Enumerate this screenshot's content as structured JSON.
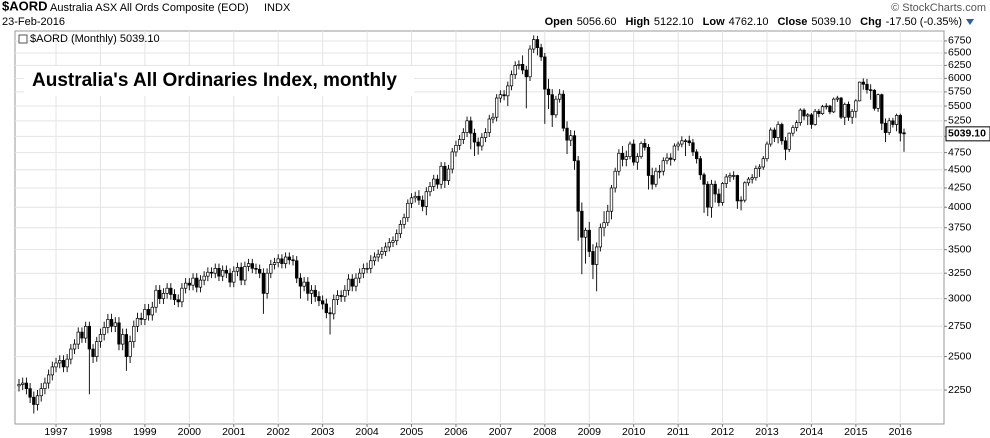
{
  "chart_data": {
    "type": "candlestick",
    "symbol": "$AORD",
    "description": "Australia ASX All Ords Composite (EOD)",
    "exchange": "INDX",
    "date": "23-Feb-2016",
    "source": "© StockCharts.com",
    "quote": [
      {
        "label": "Open",
        "value": "5056.60"
      },
      {
        "label": "High",
        "value": "5122.10"
      },
      {
        "label": "Low",
        "value": "4762.10"
      },
      {
        "label": "Close",
        "value": "5039.10"
      },
      {
        "label": "Chg",
        "value": "-17.50 (-0.35%)"
      }
    ],
    "legend": "$AORD (Monthly) 5039.10",
    "title": "Australia's All Ordinaries Index, monthly",
    "last_label": "5039.10",
    "log_scale": true,
    "grid": true,
    "up_color": "#ffffff",
    "down_color": "#000000",
    "line_color": "#000000",
    "ylim": [
      2022,
      6965
    ],
    "yticks": [
      2250,
      2500,
      2750,
      3000,
      3250,
      3500,
      3750,
      4000,
      4250,
      4500,
      4750,
      5000,
      5250,
      5500,
      5750,
      6000,
      6250,
      6500,
      6750
    ],
    "categories": [
      null,
      null,
      null,
      null,
      null,
      null,
      null,
      null,
      null,
      null,
      "1997",
      null,
      null,
      null,
      null,
      null,
      null,
      null,
      null,
      null,
      null,
      null,
      "1998",
      null,
      null,
      null,
      null,
      null,
      null,
      null,
      null,
      null,
      null,
      null,
      "1999",
      null,
      null,
      null,
      null,
      null,
      null,
      null,
      null,
      null,
      null,
      null,
      "2000",
      null,
      null,
      null,
      null,
      null,
      null,
      null,
      null,
      null,
      null,
      null,
      "2001",
      null,
      null,
      null,
      null,
      null,
      null,
      null,
      null,
      null,
      null,
      null,
      "2002",
      null,
      null,
      null,
      null,
      null,
      null,
      null,
      null,
      null,
      null,
      null,
      "2003",
      null,
      null,
      null,
      null,
      null,
      null,
      null,
      null,
      null,
      null,
      null,
      "2004",
      null,
      null,
      null,
      null,
      null,
      null,
      null,
      null,
      null,
      null,
      null,
      "2005",
      null,
      null,
      null,
      null,
      null,
      null,
      null,
      null,
      null,
      null,
      null,
      "2006",
      null,
      null,
      null,
      null,
      null,
      null,
      null,
      null,
      null,
      null,
      null,
      "2007",
      null,
      null,
      null,
      null,
      null,
      null,
      null,
      null,
      null,
      null,
      null,
      "2008",
      null,
      null,
      null,
      null,
      null,
      null,
      null,
      null,
      null,
      null,
      null,
      "2009",
      null,
      null,
      null,
      null,
      null,
      null,
      null,
      null,
      null,
      null,
      null,
      "2010",
      null,
      null,
      null,
      null,
      null,
      null,
      null,
      null,
      null,
      null,
      null,
      "2011",
      null,
      null,
      null,
      null,
      null,
      null,
      null,
      null,
      null,
      null,
      null,
      "2012",
      null,
      null,
      null,
      null,
      null,
      null,
      null,
      null,
      null,
      null,
      null,
      "2013",
      null,
      null,
      null,
      null,
      null,
      null,
      null,
      null,
      null,
      null,
      null,
      "2014",
      null,
      null,
      null,
      null,
      null,
      null,
      null,
      null,
      null,
      null,
      null,
      "2015",
      null,
      null,
      null,
      null,
      null,
      null,
      null,
      null,
      null,
      null,
      null,
      "2016",
      null
    ],
    "open": [
      2280,
      2290,
      2300,
      2260,
      2200,
      2150,
      2210,
      2260,
      2300,
      2360,
      2420,
      2450,
      2470,
      2420,
      2480,
      2560,
      2600,
      2700,
      2650,
      2750,
      2560,
      2500,
      2620,
      2680,
      2740,
      2810,
      2750,
      2780,
      2600,
      2680,
      2500,
      2620,
      2750,
      2820,
      2810,
      2900,
      2850,
      2920,
      3080,
      3000,
      3050,
      3100,
      3040,
      2990,
      2970,
      3100,
      3150,
      3130,
      3200,
      3110,
      3180,
      3220,
      3260,
      3250,
      3300,
      3220,
      3280,
      3250,
      3160,
      3270,
      3310,
      3180,
      3320,
      3350,
      3300,
      3290,
      3250,
      3050,
      3250,
      3340,
      3360,
      3400,
      3350,
      3420,
      3390,
      3380,
      3200,
      3120,
      3160,
      3050,
      3080,
      3020,
      2980,
      2950,
      2870,
      2860,
      2990,
      3030,
      3020,
      3080,
      3190,
      3120,
      3200,
      3250,
      3300,
      3300,
      3380,
      3420,
      3450,
      3480,
      3530,
      3580,
      3600,
      3680,
      3790,
      3870,
      4050,
      4120,
      4140,
      4090,
      4010,
      4200,
      4270,
      4370,
      4300,
      4550,
      4350,
      4510,
      4760,
      4860,
      4950,
      5060,
      5250,
      5050,
      4910,
      4850,
      4980,
      5060,
      5280,
      5310,
      5640,
      5700,
      5680,
      5860,
      6070,
      6250,
      6270,
      6160,
      6030,
      6580,
      6780,
      6610,
      6420,
      5800,
      5700,
      5350,
      5620,
      5710,
      5130,
      4940,
      5010,
      4630,
      3950,
      3640,
      3720,
      3480,
      3340,
      3530,
      3750,
      3810,
      3950,
      4250,
      4480,
      4740,
      4650,
      4690,
      4880,
      4610,
      4690,
      4890,
      4830,
      4420,
      4300,
      4480,
      4480,
      4630,
      4670,
      4650,
      4850,
      4880,
      4930,
      4930,
      4900,
      4760,
      4660,
      4430,
      4300,
      4000,
      4300,
      4170,
      4060,
      4310,
      4400,
      4420,
      4420,
      4080,
      4090,
      4320,
      4370,
      4390,
      4520,
      4540,
      4660,
      4880,
      5100,
      4980,
      5190,
      4930,
      4800,
      5050,
      5140,
      5220,
      5430,
      5330,
      5350,
      5190,
      5410,
      5370,
      5490,
      5500,
      5400,
      5620,
      5640,
      5310,
      5530,
      5310,
      5410,
      5590,
      5930,
      5890,
      5790,
      5780,
      5460,
      5700,
      5210,
      5060,
      5250,
      5190,
      5340,
      5056.6
    ],
    "high": [
      2330,
      2340,
      2340,
      2300,
      2240,
      2250,
      2300,
      2340,
      2400,
      2460,
      2490,
      2510,
      2510,
      2520,
      2600,
      2640,
      2740,
      2740,
      2790,
      2790,
      2600,
      2660,
      2730,
      2790,
      2860,
      2860,
      2830,
      2830,
      2730,
      2730,
      2670,
      2800,
      2870,
      2870,
      2950,
      2950,
      2970,
      3130,
      3130,
      3100,
      3150,
      3150,
      3090,
      3040,
      3150,
      3200,
      3200,
      3250,
      3250,
      3230,
      3270,
      3310,
      3310,
      3350,
      3350,
      3330,
      3330,
      3300,
      3320,
      3360,
      3360,
      3370,
      3400,
      3400,
      3350,
      3340,
      3300,
      3300,
      3390,
      3410,
      3450,
      3450,
      3470,
      3470,
      3440,
      3430,
      3250,
      3210,
      3210,
      3130,
      3130,
      3070,
      3030,
      3000,
      2920,
      3040,
      3080,
      3080,
      3130,
      3240,
      3240,
      3250,
      3300,
      3350,
      3360,
      3440,
      3470,
      3500,
      3530,
      3580,
      3630,
      3650,
      3730,
      3840,
      3920,
      4100,
      4180,
      4200,
      4220,
      4150,
      4260,
      4330,
      4430,
      4430,
      4610,
      4610,
      4570,
      4820,
      4930,
      5020,
      5130,
      5320,
      5320,
      5120,
      4980,
      5050,
      5130,
      5350,
      5380,
      5710,
      5780,
      5780,
      5940,
      6150,
      6330,
      6350,
      6450,
      6240,
      6660,
      6870,
      6860,
      6690,
      6500,
      5990,
      5800,
      5680,
      5800,
      5780,
      5240,
      5100,
      5090,
      4700,
      4060,
      3750,
      3820,
      3560,
      3580,
      3800,
      3950,
      4030,
      4290,
      4530,
      4800,
      4850,
      4780,
      4920,
      4950,
      4740,
      4920,
      4960,
      4880,
      4530,
      4530,
      4570,
      4680,
      4740,
      4740,
      4890,
      4920,
      5000,
      4960,
      5010,
      4960,
      4800,
      4700,
      4460,
      4340,
      4360,
      4350,
      4240,
      4330,
      4440,
      4460,
      4480,
      4430,
      4140,
      4340,
      4400,
      4440,
      4560,
      4580,
      4700,
      4920,
      5140,
      5140,
      5240,
      5220,
      4990,
      5060,
      5180,
      5260,
      5460,
      5460,
      5380,
      5380,
      5450,
      5450,
      5520,
      5550,
      5520,
      5650,
      5680,
      5660,
      5560,
      5580,
      5450,
      5620,
      5940,
      6000,
      5990,
      5890,
      5800,
      5720,
      5720,
      5290,
      5300,
      5300,
      5370,
      5370,
      5122.1
    ],
    "low": [
      2240,
      2250,
      2220,
      2160,
      2090,
      2110,
      2170,
      2220,
      2260,
      2320,
      2380,
      2410,
      2380,
      2380,
      2440,
      2520,
      2560,
      2610,
      2610,
      2220,
      2450,
      2460,
      2570,
      2630,
      2690,
      2700,
      2700,
      2550,
      2550,
      2390,
      2450,
      2570,
      2700,
      2760,
      2760,
      2800,
      2800,
      2870,
      2950,
      2950,
      3000,
      2990,
      2940,
      2920,
      2920,
      3050,
      3080,
      3080,
      3060,
      3060,
      3130,
      3170,
      3200,
      3200,
      3170,
      3170,
      3200,
      3110,
      3110,
      3220,
      3130,
      3130,
      3270,
      3250,
      3240,
      3200,
      2860,
      3000,
      3200,
      3290,
      3310,
      3300,
      3300,
      3340,
      3330,
      3150,
      3000,
      3070,
      2980,
      2950,
      2970,
      2930,
      2900,
      2820,
      2680,
      2810,
      2940,
      2970,
      2970,
      3030,
      3070,
      3070,
      3150,
      3200,
      3250,
      3250,
      3330,
      3370,
      3400,
      3430,
      3480,
      3530,
      3550,
      3630,
      3740,
      3820,
      3990,
      4060,
      4030,
      3950,
      3900,
      4140,
      4210,
      4240,
      4240,
      4250,
      4290,
      4450,
      4690,
      4790,
      4880,
      4990,
      4800,
      4700,
      4720,
      4780,
      4910,
      4990,
      5210,
      5240,
      5560,
      5600,
      5500,
      5780,
      5990,
      6170,
      6080,
      5460,
      5950,
      6500,
      6450,
      6340,
      5200,
      5450,
      5150,
      5300,
      5560,
      5080,
      4730,
      4850,
      4500,
      3600,
      3240,
      3350,
      3420,
      3190,
      3070,
      3480,
      3650,
      3770,
      3850,
      4190,
      4420,
      4550,
      4550,
      4650,
      4560,
      4500,
      4660,
      4780,
      4230,
      4230,
      4260,
      4380,
      4420,
      4580,
      4560,
      4620,
      4780,
      4830,
      4700,
      4850,
      4700,
      4590,
      4360,
      3930,
      3890,
      3870,
      4060,
      4010,
      4020,
      4250,
      4330,
      4360,
      3980,
      3960,
      4060,
      4280,
      4310,
      4350,
      4400,
      4500,
      4620,
      4840,
      4910,
      4890,
      4870,
      4640,
      4760,
      5000,
      5080,
      5170,
      5260,
      5180,
      5120,
      5170,
      5310,
      5350,
      5440,
      5360,
      5380,
      5570,
      5280,
      5180,
      5250,
      5200,
      5300,
      5580,
      5790,
      5720,
      5610,
      5420,
      5400,
      5100,
      4910,
      5020,
      5140,
      5080,
      4920,
      4762.1
    ],
    "close": [
      2290,
      2300,
      2260,
      2200,
      2150,
      2210,
      2260,
      2300,
      2360,
      2420,
      2450,
      2470,
      2420,
      2480,
      2560,
      2600,
      2700,
      2650,
      2750,
      2560,
      2500,
      2620,
      2680,
      2740,
      2810,
      2750,
      2780,
      2600,
      2680,
      2500,
      2620,
      2750,
      2820,
      2810,
      2900,
      2850,
      2920,
      3080,
      3000,
      3050,
      3100,
      3040,
      2990,
      2970,
      3100,
      3150,
      3130,
      3200,
      3110,
      3180,
      3220,
      3260,
      3250,
      3300,
      3220,
      3280,
      3250,
      3160,
      3270,
      3310,
      3180,
      3320,
      3350,
      3300,
      3290,
      3250,
      3050,
      3250,
      3340,
      3360,
      3400,
      3350,
      3420,
      3390,
      3380,
      3200,
      3120,
      3160,
      3050,
      3080,
      3020,
      2980,
      2950,
      2870,
      2860,
      2990,
      3030,
      3020,
      3080,
      3190,
      3120,
      3200,
      3250,
      3300,
      3300,
      3380,
      3420,
      3450,
      3480,
      3530,
      3580,
      3600,
      3680,
      3790,
      3870,
      4050,
      4120,
      4140,
      4090,
      4010,
      4200,
      4270,
      4370,
      4300,
      4550,
      4350,
      4510,
      4760,
      4860,
      4950,
      5060,
      5250,
      5050,
      4910,
      4850,
      4980,
      5060,
      5280,
      5310,
      5640,
      5700,
      5680,
      5860,
      6070,
      6250,
      6270,
      6160,
      6030,
      6580,
      6780,
      6610,
      6420,
      5800,
      5700,
      5350,
      5620,
      5710,
      5130,
      4940,
      5010,
      4630,
      3950,
      3640,
      3720,
      3480,
      3340,
      3530,
      3750,
      3810,
      3950,
      4250,
      4480,
      4740,
      4650,
      4690,
      4880,
      4610,
      4690,
      4890,
      4830,
      4420,
      4300,
      4480,
      4480,
      4630,
      4670,
      4650,
      4850,
      4880,
      4930,
      4930,
      4900,
      4760,
      4660,
      4430,
      4300,
      4000,
      4300,
      4170,
      4060,
      4310,
      4400,
      4420,
      4420,
      4080,
      4090,
      4320,
      4370,
      4390,
      4520,
      4540,
      4660,
      4880,
      5100,
      4980,
      5190,
      4930,
      4800,
      5050,
      5140,
      5220,
      5430,
      5330,
      5350,
      5190,
      5410,
      5370,
      5490,
      5500,
      5400,
      5620,
      5640,
      5310,
      5530,
      5310,
      5410,
      5590,
      5930,
      5890,
      5790,
      5780,
      5460,
      5700,
      5210,
      5060,
      5250,
      5190,
      5340,
      5050,
      5039.1
    ]
  }
}
